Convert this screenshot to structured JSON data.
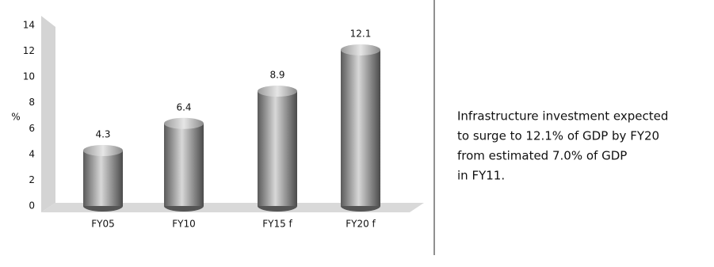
{
  "chart_data": {
    "type": "bar",
    "categories": [
      "FY05",
      "FY10",
      "FY15 f",
      "FY20 f"
    ],
    "values": [
      4.3,
      6.4,
      8.9,
      12.1
    ],
    "color": "#8c8c8c",
    "ylabel": "%",
    "ylim": [
      0,
      14
    ],
    "yticks": [
      0,
      2,
      4,
      6,
      8,
      10,
      12,
      14
    ],
    "annotation": [
      "Infrastructure investment expected",
      "to surge to 12.1% of GDP by FY20",
      "from  estimated 7.0% of GDP",
      "in FY11."
    ]
  }
}
